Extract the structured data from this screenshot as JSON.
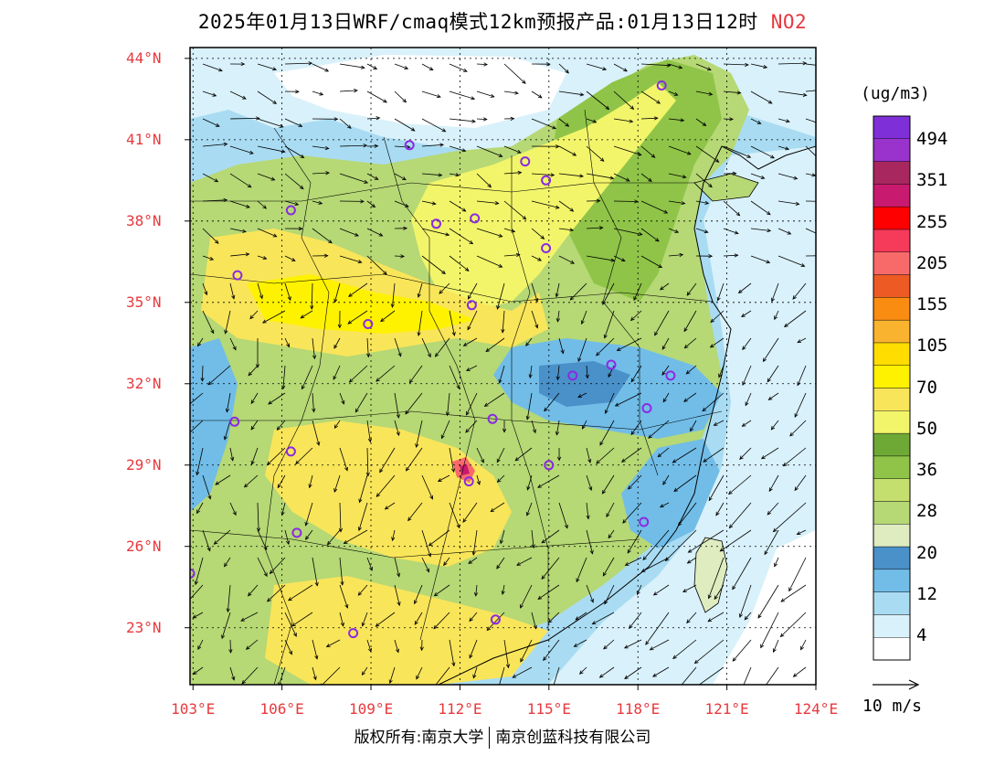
{
  "title": {
    "main": "2025年01月13日WRF/cmaq模式12km预报产品:01月13日12时",
    "pollutant": "NO2",
    "pollutant_color": "#e8383d"
  },
  "axes": {
    "lat_labels": [
      "44°N",
      "41°N",
      "38°N",
      "35°N",
      "32°N",
      "29°N",
      "26°N",
      "23°N"
    ],
    "lon_labels": [
      "103°E",
      "106°E",
      "109°E",
      "112°E",
      "115°E",
      "118°E",
      "121°E",
      "124°E"
    ],
    "lat_values": [
      44,
      41,
      38,
      35,
      32,
      29,
      26,
      23
    ],
    "lon_values": [
      103,
      106,
      109,
      112,
      115,
      118,
      121,
      124
    ],
    "label_color": "#e8383d",
    "lon_range": [
      102.9,
      124
    ],
    "lat_range": [
      20.9,
      44.4
    ]
  },
  "legend": {
    "unit": "(ug/m3)",
    "bins": [
      {
        "color": "#ffffff"
      },
      {
        "color": "#d9f1fa"
      },
      {
        "color": "#a9dcf2"
      },
      {
        "color": "#71bde8"
      },
      {
        "color": "#4a90c9"
      },
      {
        "color": "#deecc0"
      },
      {
        "color": "#b6d875"
      },
      {
        "color": "#c4df6e"
      },
      {
        "color": "#8fc448"
      },
      {
        "color": "#6ea935"
      },
      {
        "color": "#f2f56a"
      },
      {
        "color": "#f9e55a"
      },
      {
        "color": "#fff200"
      },
      {
        "color": "#ffdd00"
      },
      {
        "color": "#f9b32e"
      },
      {
        "color": "#fb8c12"
      },
      {
        "color": "#ee5a24"
      },
      {
        "color": "#f86a6a"
      },
      {
        "color": "#f63a5a"
      },
      {
        "color": "#ff0000"
      },
      {
        "color": "#c81a6e"
      },
      {
        "color": "#a8275f"
      },
      {
        "color": "#9933cc"
      },
      {
        "color": "#7f2fd8"
      }
    ],
    "labels": [
      "494",
      "351",
      "255",
      "205",
      "155",
      "105",
      "70",
      "50",
      "36",
      "28",
      "20",
      "12",
      "4"
    ]
  },
  "wind": {
    "reference_label": "10 m/s"
  },
  "cities": [
    {
      "lon": 118.8,
      "lat": 43.0
    },
    {
      "lon": 110.3,
      "lat": 40.8
    },
    {
      "lon": 114.2,
      "lat": 40.2
    },
    {
      "lon": 114.9,
      "lat": 39.5
    },
    {
      "lon": 106.3,
      "lat": 38.4
    },
    {
      "lon": 111.2,
      "lat": 37.9
    },
    {
      "lon": 112.5,
      "lat": 38.1
    },
    {
      "lon": 114.9,
      "lat": 37.0
    },
    {
      "lon": 104.5,
      "lat": 36.0
    },
    {
      "lon": 112.4,
      "lat": 34.9
    },
    {
      "lon": 108.9,
      "lat": 34.2
    },
    {
      "lon": 115.8,
      "lat": 32.3
    },
    {
      "lon": 117.1,
      "lat": 32.7
    },
    {
      "lon": 119.1,
      "lat": 32.3
    },
    {
      "lon": 118.3,
      "lat": 31.1
    },
    {
      "lon": 104.4,
      "lat": 30.6
    },
    {
      "lon": 113.1,
      "lat": 30.7
    },
    {
      "lon": 106.3,
      "lat": 29.5
    },
    {
      "lon": 115.0,
      "lat": 29.0
    },
    {
      "lon": 112.3,
      "lat": 28.4
    },
    {
      "lon": 106.5,
      "lat": 26.5
    },
    {
      "lon": 118.2,
      "lat": 26.9
    },
    {
      "lon": 102.9,
      "lat": 25.0
    },
    {
      "lon": 108.4,
      "lat": 22.8
    },
    {
      "lon": 113.2,
      "lat": 23.3
    }
  ],
  "footer": {
    "left": "版权所有:南京大学",
    "right": "南京创蓝科技有限公司"
  }
}
